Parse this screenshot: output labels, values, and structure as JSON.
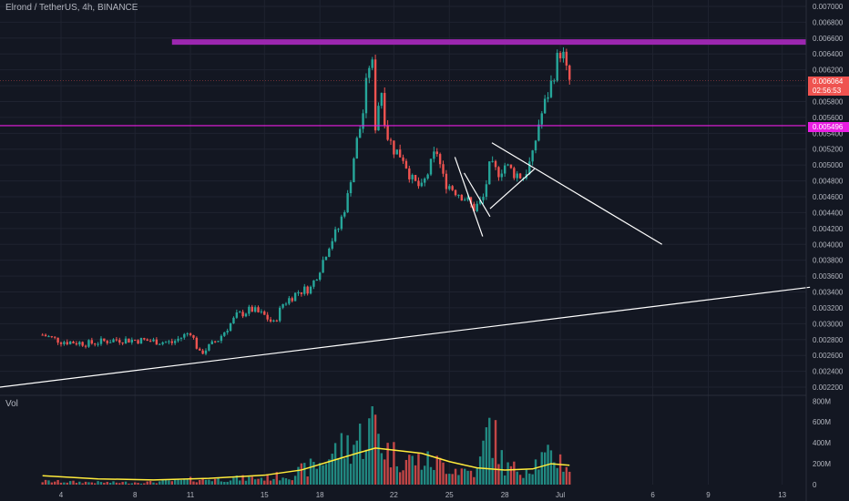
{
  "header": {
    "title": "Elrond / TetherUS, 4h, BINANCE"
  },
  "volume_pane": {
    "label": "Vol"
  },
  "colors": {
    "up": "#26a69a",
    "down": "#ef5350",
    "resistance": "#9c27b0",
    "level": "#e91ee3",
    "trend": "#ffffff",
    "ma": "#ffeb3b",
    "background": "#131722",
    "grid": "#1f2330",
    "axis_text": "#b2b5be"
  },
  "price_badge": {
    "price": "0.006064",
    "countdown": "02:56:53"
  },
  "level_badge": {
    "price": "0.005496"
  },
  "chart_data": [
    {
      "type": "candlestick",
      "title": "Elrond / TetherUS, 4h, BINANCE",
      "y_ticks": [
        "0.002200",
        "0.002400",
        "0.002600",
        "0.002800",
        "0.003000",
        "0.003200",
        "0.003400",
        "0.003600",
        "0.003800",
        "0.004000",
        "0.004200",
        "0.004400",
        "0.004600",
        "0.004800",
        "0.005000",
        "0.005200",
        "0.005400",
        "0.005600",
        "0.005800",
        "0.006000",
        "0.006200",
        "0.006400",
        "0.006600",
        "0.006800",
        "0.007000"
      ],
      "ylim": [
        0.00212,
        0.00708
      ],
      "x_ticks": [
        {
          "label": "4",
          "day": 4
        },
        {
          "label": "8",
          "day": 8
        },
        {
          "label": "11",
          "day": 11
        },
        {
          "label": "15",
          "day": 15
        },
        {
          "label": "18",
          "day": 18
        },
        {
          "label": "22",
          "day": 22
        },
        {
          "label": "25",
          "day": 25
        },
        {
          "label": "28",
          "day": 28
        },
        {
          "label": "Jul",
          "day": 31
        },
        {
          "label": "6",
          "day": 36
        },
        {
          "label": "9",
          "day": 39
        },
        {
          "label": "13",
          "day": 43
        }
      ],
      "close_series": [
        {
          "day": 3.0,
          "price": 0.00286
        },
        {
          "day": 4.0,
          "price": 0.00278
        },
        {
          "day": 5.5,
          "price": 0.00275
        },
        {
          "day": 7.0,
          "price": 0.0028
        },
        {
          "day": 8.5,
          "price": 0.00279
        },
        {
          "day": 10.0,
          "price": 0.00276
        },
        {
          "day": 11.0,
          "price": 0.0029
        },
        {
          "day": 11.5,
          "price": 0.00262
        },
        {
          "day": 12.5,
          "price": 0.0028
        },
        {
          "day": 13.5,
          "price": 0.0031
        },
        {
          "day": 14.3,
          "price": 0.00318
        },
        {
          "day": 15.0,
          "price": 0.0031
        },
        {
          "day": 15.5,
          "price": 0.003
        },
        {
          "day": 16.0,
          "price": 0.00325
        },
        {
          "day": 16.8,
          "price": 0.0034
        },
        {
          "day": 17.5,
          "price": 0.00345
        },
        {
          "day": 18.0,
          "price": 0.0037
        },
        {
          "day": 18.5,
          "price": 0.004
        },
        {
          "day": 19.0,
          "price": 0.0042
        },
        {
          "day": 19.5,
          "price": 0.0046
        },
        {
          "day": 19.9,
          "price": 0.0052
        },
        {
          "day": 20.3,
          "price": 0.0056
        },
        {
          "day": 20.6,
          "price": 0.0062
        },
        {
          "day": 20.8,
          "price": 0.0064
        },
        {
          "day": 21.0,
          "price": 0.0055
        },
        {
          "day": 21.3,
          "price": 0.006
        },
        {
          "day": 21.6,
          "price": 0.0054
        },
        {
          "day": 22.0,
          "price": 0.0052
        },
        {
          "day": 22.5,
          "price": 0.0051
        },
        {
          "day": 23.0,
          "price": 0.0048
        },
        {
          "day": 23.5,
          "price": 0.0047
        },
        {
          "day": 24.0,
          "price": 0.005
        },
        {
          "day": 24.3,
          "price": 0.0052
        },
        {
          "day": 24.7,
          "price": 0.0048
        },
        {
          "day": 25.2,
          "price": 0.0047
        },
        {
          "day": 25.8,
          "price": 0.0046
        },
        {
          "day": 26.3,
          "price": 0.00445
        },
        {
          "day": 26.8,
          "price": 0.00455
        },
        {
          "day": 27.2,
          "price": 0.005
        },
        {
          "day": 27.6,
          "price": 0.0049
        },
        {
          "day": 28.0,
          "price": 0.005
        },
        {
          "day": 28.5,
          "price": 0.0049
        },
        {
          "day": 29.0,
          "price": 0.00485
        },
        {
          "day": 29.5,
          "price": 0.0051
        },
        {
          "day": 29.8,
          "price": 0.0055
        },
        {
          "day": 30.2,
          "price": 0.0058
        },
        {
          "day": 30.6,
          "price": 0.0061
        },
        {
          "day": 30.9,
          "price": 0.0064
        },
        {
          "day": 31.1,
          "price": 0.00645
        },
        {
          "day": 31.3,
          "price": 0.0062
        },
        {
          "day": 31.5,
          "price": 0.00606
        }
      ],
      "volume_axis": {
        "ticks": [
          "0",
          "200M",
          "400M",
          "600M",
          "800M"
        ],
        "max": 820
      },
      "volume_series": [
        {
          "day": 3.0,
          "v": 40
        },
        {
          "day": 5.0,
          "v": 30
        },
        {
          "day": 7.0,
          "v": 25
        },
        {
          "day": 9.0,
          "v": 30
        },
        {
          "day": 11.0,
          "v": 60
        },
        {
          "day": 13.0,
          "v": 70
        },
        {
          "day": 15.0,
          "v": 80
        },
        {
          "day": 16.5,
          "v": 120
        },
        {
          "day": 18.0,
          "v": 250
        },
        {
          "day": 19.0,
          "v": 420
        },
        {
          "day": 19.8,
          "v": 500
        },
        {
          "day": 20.5,
          "v": 600
        },
        {
          "day": 21.0,
          "v": 760
        },
        {
          "day": 21.5,
          "v": 420
        },
        {
          "day": 22.5,
          "v": 300
        },
        {
          "day": 23.5,
          "v": 280
        },
        {
          "day": 24.5,
          "v": 250
        },
        {
          "day": 25.5,
          "v": 180
        },
        {
          "day": 26.5,
          "v": 150
        },
        {
          "day": 27.2,
          "v": 720
        },
        {
          "day": 28.0,
          "v": 200
        },
        {
          "day": 29.0,
          "v": 180
        },
        {
          "day": 30.0,
          "v": 300
        },
        {
          "day": 30.8,
          "v": 330
        },
        {
          "day": 31.5,
          "v": 200
        }
      ],
      "volume_ma": [
        {
          "day": 3.0,
          "v": 85
        },
        {
          "day": 6.0,
          "v": 55
        },
        {
          "day": 9.0,
          "v": 45
        },
        {
          "day": 12.0,
          "v": 60
        },
        {
          "day": 15.0,
          "v": 90
        },
        {
          "day": 17.0,
          "v": 140
        },
        {
          "day": 18.5,
          "v": 220
        },
        {
          "day": 20.0,
          "v": 300
        },
        {
          "day": 21.0,
          "v": 350
        },
        {
          "day": 22.0,
          "v": 330
        },
        {
          "day": 23.5,
          "v": 300
        },
        {
          "day": 25.0,
          "v": 220
        },
        {
          "day": 26.5,
          "v": 160
        },
        {
          "day": 28.0,
          "v": 140
        },
        {
          "day": 29.5,
          "v": 150
        },
        {
          "day": 30.5,
          "v": 200
        },
        {
          "day": 31.5,
          "v": 185
        }
      ],
      "lines": [
        {
          "kind": "resistance",
          "price": 0.00655,
          "day_from": 10.0,
          "day_to": 44.5
        },
        {
          "kind": "horizontal",
          "price": 0.005496,
          "day_from": 0,
          "day_to": 44.5
        },
        {
          "kind": "current-price",
          "price": 0.006064,
          "day_from": 0,
          "day_to": 44.5
        },
        {
          "kind": "trend",
          "from": {
            "day": 0,
            "price": 0.00218
          },
          "to": {
            "day": 44.5,
            "price": 0.00346
          }
        },
        {
          "kind": "trend",
          "from": {
            "day": 25.3,
            "price": 0.0051
          },
          "to": {
            "day": 26.8,
            "price": 0.0041
          }
        },
        {
          "kind": "trend",
          "from": {
            "day": 25.8,
            "price": 0.0049
          },
          "to": {
            "day": 27.2,
            "price": 0.00435
          }
        },
        {
          "kind": "trend",
          "from": {
            "day": 27.2,
            "price": 0.00445
          },
          "to": {
            "day": 29.6,
            "price": 0.00495
          }
        },
        {
          "kind": "trend",
          "from": {
            "day": 27.3,
            "price": 0.00528
          },
          "to": {
            "day": 36.5,
            "price": 0.004
          }
        }
      ]
    }
  ]
}
